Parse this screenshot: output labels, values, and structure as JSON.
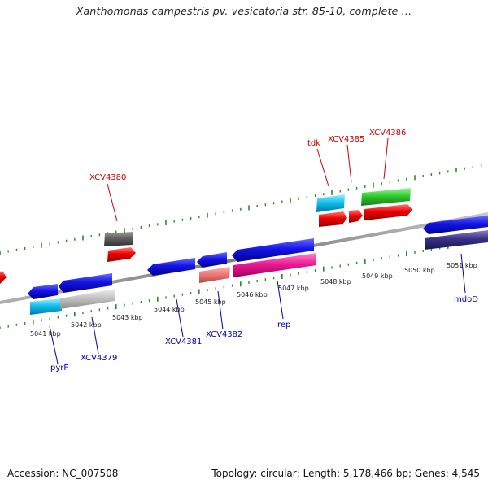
{
  "title": "Xanthomonas campestris pv. vesicatoria str. 85-10, complete ...",
  "footer": {
    "accession_label": "Accession:",
    "accession": "NC_007508",
    "topology_label": "Topology:",
    "topology": "circular",
    "length_label": "Length:",
    "length": "5,178,466 bp",
    "genes_label": "Genes:",
    "genes": "4,545"
  },
  "colors": {
    "backbone": "#8a8a8a",
    "ticks": "#2a8a2a",
    "label_top": "#cc0000",
    "label_bottom": "#0000aa"
  },
  "scale_ticks": [
    "5041 kbp",
    "5042 kbp",
    "5043 kbp",
    "5044 kbp",
    "5045 kbp",
    "5046 kbp",
    "5047 kbp",
    "5048 kbp",
    "5049 kbp",
    "5050 kbp",
    "5051 kbp"
  ],
  "gene_labels_top": [
    "XCV4380",
    "tdk",
    "XCV4385",
    "XCV4386"
  ],
  "gene_labels_bottom": [
    "pyrF",
    "XCV4379",
    "XCV4381",
    "XCV4382",
    "rep",
    "mdoD"
  ]
}
